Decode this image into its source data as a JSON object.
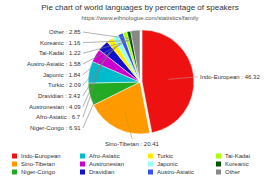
{
  "chart_data": {
    "type": "pie",
    "title": "Pie chart of world languages by percentage of speakers",
    "subtitle": "https://www.ethnologue.com/statistics/family",
    "categories": [
      "Indo-European",
      "Sino-Tibetan",
      "Niger-Congo",
      "Afro-Asiatic",
      "Austronesian",
      "Dravidian",
      "Turkic",
      "Japonic",
      "Austro-Asiatic",
      "Tai-Kadai",
      "Koreanic",
      "Other"
    ],
    "values": [
      46.32,
      20.41,
      6.91,
      6.7,
      4.09,
      3.43,
      2.09,
      1.84,
      1.58,
      1.22,
      1.16,
      2.85
    ],
    "colors": [
      "#ee1111",
      "#ff9900",
      "#22aa22",
      "#00bbcc",
      "#cc00cc",
      "#1111cc",
      "#ffee00",
      "#99ffee",
      "#3355ee",
      "#aaff00",
      "#005500",
      "#888888"
    ],
    "data_labels": true,
    "value_labels": [
      "Indo-European : 46.32",
      "Sino-Tibetan : 20.41",
      "Niger-Congo : 6.91",
      "Afro-Asiatic : 6.7",
      "Austronesian : 4.09",
      "Dravidian : 3.43",
      "Turkic : 2.09",
      "Japonic : 1.84",
      "Austro-Asiatic : 1.58",
      "Tai-Kadai : 1.22",
      "Koreanic : 1.16",
      "Other : 2.85"
    ],
    "legend": "bottom"
  }
}
